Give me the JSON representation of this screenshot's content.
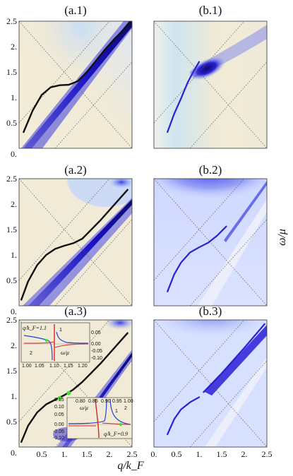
{
  "figure": {
    "shared_x_label": "q/k_F",
    "shared_y_label": "ω/μ",
    "x_ticks": [
      "0.",
      "0.5",
      "1.",
      "1.5",
      "2.",
      "2.5"
    ],
    "y_ticks": [
      "0.",
      "0.5",
      "1.",
      "1.5",
      "2.",
      "2.5"
    ]
  },
  "colors": {
    "beige": "#f0ead6",
    "light_blue": "#d7e1ff",
    "strong_blue": "#2a1fd6",
    "dark_navy": "#0c0a70",
    "black_curve": "#111111",
    "dotted_line": "#555555",
    "inset_blue": "#2244cc",
    "inset_red": "#dd2222",
    "marker_green": "#44dd33"
  },
  "panels": [
    {
      "id": "a1",
      "title": "(a.1)"
    },
    {
      "id": "a2",
      "title": "(a.2)"
    },
    {
      "id": "a3",
      "title": "(a.3)"
    },
    {
      "id": "b1",
      "title": "(b.1)"
    },
    {
      "id": "b2",
      "title": "(b.2)"
    },
    {
      "id": "b3",
      "title": "(b.3)"
    }
  ],
  "insets": {
    "upper": {
      "annotation": "q/k_F=1.1",
      "curve_label_1": "1",
      "curve_label_2": "2",
      "x_label": "ω/μ",
      "x_ticks": [
        "1.00",
        "1.05",
        "1.10",
        "1.15",
        "1.20"
      ],
      "y_ticks": [
        "0.05",
        "0.00",
        "-0.05",
        "-0.10"
      ]
    },
    "lower": {
      "annotation": "q/k_F=0.9",
      "curve_label_1": "1",
      "curve_label_2": "2",
      "x_label": "ω/μ",
      "x_ticks": [
        "0.80",
        "0.85",
        "0.90",
        "0.95",
        "1.00"
      ],
      "y_ticks": [
        "0.15",
        "0.10",
        "0.05",
        "0.00",
        "-0.05",
        "-0.10"
      ]
    }
  },
  "chart_data": [
    {
      "type": "heatmap",
      "panel": "(a.1)",
      "xlim": [
        0,
        2.5
      ],
      "ylim": [
        0,
        2.5
      ],
      "y_ticks_shown": true,
      "x_ticks_shown": false,
      "series": [
        {
          "values_x": [
            0.1,
            0.3,
            0.5,
            0.7,
            0.9,
            1.1,
            1.3,
            1.5,
            1.7,
            1.9,
            2.1,
            2.3,
            2.45
          ],
          "values_y": [
            0.32,
            0.74,
            1.05,
            1.2,
            1.24,
            1.25,
            1.32,
            1.5,
            1.72,
            1.94,
            2.14,
            2.32,
            2.47
          ]
        }
      ]
    },
    {
      "type": "heatmap",
      "panel": "(a.2)",
      "xlim": [
        0,
        2.5
      ],
      "ylim": [
        0,
        2.5
      ],
      "y_ticks_shown": true,
      "x_ticks_shown": false,
      "series": [
        {
          "values_x": [
            0.05,
            0.2,
            0.4,
            0.6,
            0.8,
            1.0,
            1.2,
            1.4,
            1.6,
            1.8,
            2.0,
            2.2,
            2.4
          ],
          "values_y": [
            0.12,
            0.48,
            0.8,
            1.0,
            1.12,
            1.18,
            1.23,
            1.32,
            1.5,
            1.68,
            1.88,
            2.08,
            2.28
          ]
        }
      ]
    },
    {
      "type": "heatmap",
      "panel": "(a.3)",
      "xlim": [
        0,
        2.5
      ],
      "ylim": [
        0,
        2.5
      ],
      "y_ticks_shown": true,
      "x_ticks_shown": true,
      "markers": [
        {
          "x": 0.9,
          "y": 0.96
        },
        {
          "x": 1.1,
          "y": 1.06
        }
      ],
      "series": [
        {
          "values_x": [
            0.05,
            0.2,
            0.4,
            0.6,
            0.8,
            1.0,
            1.2,
            1.4,
            1.6,
            1.8,
            2.0,
            2.2,
            2.4
          ],
          "values_y": [
            0.1,
            0.42,
            0.68,
            0.84,
            0.93,
            1.02,
            1.13,
            1.28,
            1.46,
            1.64,
            1.84,
            2.04,
            2.24
          ]
        }
      ]
    },
    {
      "type": "heatmap",
      "panel": "(b.1)",
      "xlim": [
        0,
        2.5
      ],
      "ylim": [
        0,
        2.5
      ],
      "y_ticks_shown": false,
      "x_ticks_shown": false,
      "series": [
        {
          "values_x": [
            0.3,
            0.45,
            0.6,
            0.75,
            0.9,
            1.0
          ],
          "values_y": [
            0.32,
            0.68,
            0.98,
            1.3,
            1.55,
            1.7
          ]
        }
      ]
    },
    {
      "type": "heatmap",
      "panel": "(b.2)",
      "xlim": [
        0,
        2.5
      ],
      "ylim": [
        0,
        2.5
      ],
      "y_ticks_shown": false,
      "x_ticks_shown": false,
      "series": [
        {
          "values_x": [
            0.3,
            0.45,
            0.6,
            0.8,
            1.0,
            1.2,
            1.4,
            1.6
          ],
          "values_y": [
            0.28,
            0.62,
            0.85,
            1.05,
            1.15,
            1.24,
            1.38,
            1.56
          ]
        }
      ]
    },
    {
      "type": "heatmap",
      "panel": "(b.3)",
      "xlim": [
        0,
        2.5
      ],
      "ylim": [
        0,
        2.5
      ],
      "y_ticks_shown": false,
      "x_ticks_shown": true,
      "series": [
        {
          "values_x": [
            0.3,
            0.45,
            0.6,
            0.8,
            1.0
          ],
          "values_y": [
            0.25,
            0.55,
            0.74,
            0.88,
            0.98
          ]
        },
        {
          "values_x": [
            1.1,
            1.5,
            2.0,
            2.45
          ],
          "values_y": [
            1.08,
            1.45,
            1.95,
            2.42
          ]
        }
      ]
    }
  ]
}
